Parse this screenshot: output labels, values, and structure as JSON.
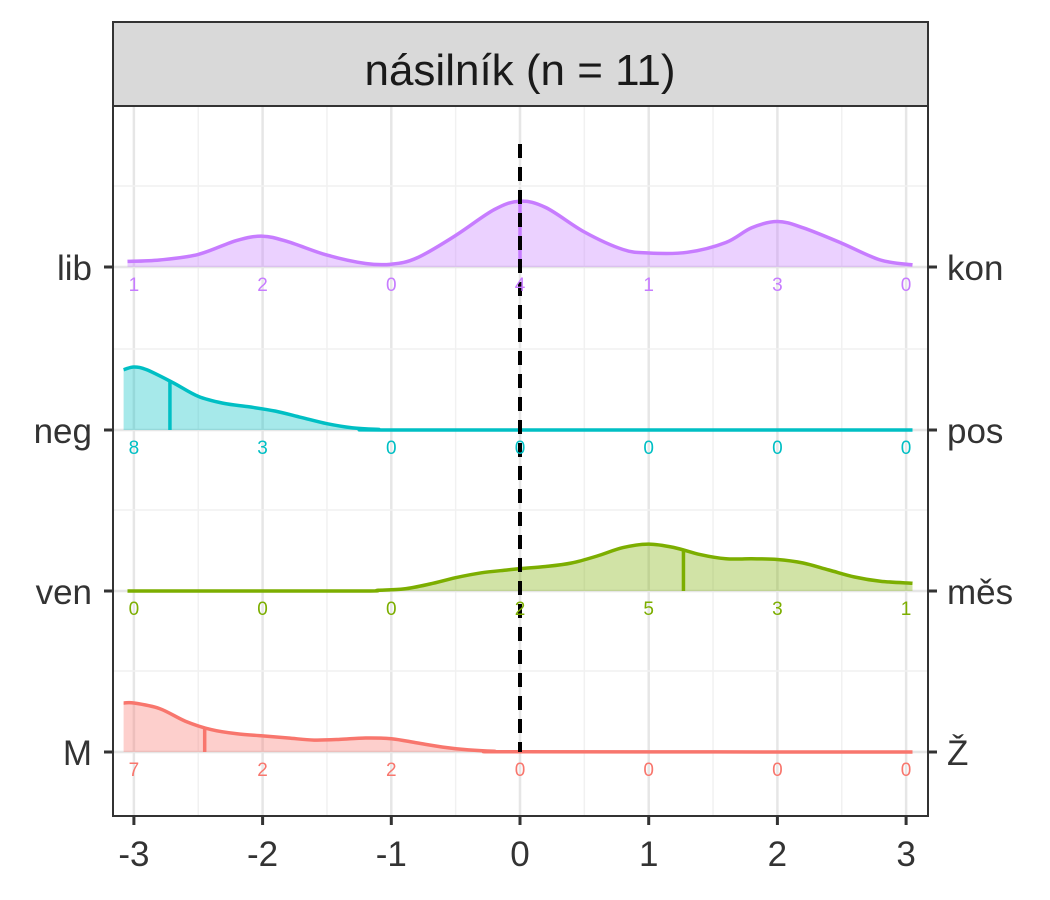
{
  "chart_data": {
    "type": "ridgeline",
    "title": "násilník (n = 11)",
    "x_ticks": [
      "-3",
      "-2",
      "-1",
      "0",
      "1",
      "2",
      "3"
    ],
    "xlim": [
      -3.1,
      3.1
    ],
    "reference_line_x": 0,
    "grid": true,
    "series": [
      {
        "left_label": "lib",
        "right_label": "kon",
        "color": "#C77CFF",
        "counts": [
          1,
          2,
          0,
          4,
          1,
          3,
          0
        ],
        "median": 0.0,
        "curve": [
          [
            -3.05,
            0.08
          ],
          [
            -2.8,
            0.1
          ],
          [
            -2.5,
            0.18
          ],
          [
            -2.2,
            0.38
          ],
          [
            -2.0,
            0.44
          ],
          [
            -1.8,
            0.36
          ],
          [
            -1.5,
            0.17
          ],
          [
            -1.2,
            0.05
          ],
          [
            -1.0,
            0.04
          ],
          [
            -0.8,
            0.13
          ],
          [
            -0.5,
            0.45
          ],
          [
            -0.2,
            0.82
          ],
          [
            0.0,
            0.94
          ],
          [
            0.2,
            0.85
          ],
          [
            0.5,
            0.5
          ],
          [
            0.8,
            0.25
          ],
          [
            1.0,
            0.2
          ],
          [
            1.3,
            0.21
          ],
          [
            1.6,
            0.35
          ],
          [
            1.8,
            0.56
          ],
          [
            2.0,
            0.65
          ],
          [
            2.2,
            0.56
          ],
          [
            2.5,
            0.34
          ],
          [
            2.8,
            0.1
          ],
          [
            3.05,
            0.03
          ]
        ]
      },
      {
        "left_label": "neg",
        "right_label": "pos",
        "color": "#00BFC4",
        "counts": [
          8,
          3,
          0,
          0,
          0,
          0,
          0
        ],
        "median": -2.72,
        "curve": [
          [
            -3.08,
            0.86
          ],
          [
            -3.0,
            0.9
          ],
          [
            -2.9,
            0.86
          ],
          [
            -2.7,
            0.68
          ],
          [
            -2.5,
            0.48
          ],
          [
            -2.3,
            0.38
          ],
          [
            -2.1,
            0.33
          ],
          [
            -1.9,
            0.27
          ],
          [
            -1.7,
            0.18
          ],
          [
            -1.5,
            0.09
          ],
          [
            -1.3,
            0.03
          ],
          [
            -1.1,
            0.008
          ],
          [
            -0.9,
            0.0
          ],
          [
            3.05,
            0.0
          ]
        ]
      },
      {
        "left_label": "ven",
        "right_label": "měs",
        "color": "#7CAE00",
        "counts": [
          0,
          0,
          0,
          2,
          5,
          3,
          1
        ],
        "median": 1.27,
        "curve": [
          [
            -3.05,
            0.0
          ],
          [
            -1.3,
            0.0
          ],
          [
            -1.1,
            0.01
          ],
          [
            -0.9,
            0.03
          ],
          [
            -0.7,
            0.1
          ],
          [
            -0.5,
            0.19
          ],
          [
            -0.3,
            0.26
          ],
          [
            -0.1,
            0.3
          ],
          [
            0.0,
            0.32
          ],
          [
            0.2,
            0.35
          ],
          [
            0.4,
            0.4
          ],
          [
            0.6,
            0.5
          ],
          [
            0.8,
            0.62
          ],
          [
            1.0,
            0.67
          ],
          [
            1.2,
            0.62
          ],
          [
            1.4,
            0.52
          ],
          [
            1.6,
            0.46
          ],
          [
            1.8,
            0.46
          ],
          [
            2.0,
            0.45
          ],
          [
            2.2,
            0.4
          ],
          [
            2.4,
            0.3
          ],
          [
            2.6,
            0.2
          ],
          [
            2.8,
            0.14
          ],
          [
            3.05,
            0.11
          ]
        ]
      },
      {
        "left_label": "M",
        "right_label": "Ž",
        "color": "#F8766D",
        "counts": [
          7,
          2,
          2,
          0,
          0,
          0,
          0
        ],
        "median": -2.45,
        "curve": [
          [
            -3.08,
            0.7
          ],
          [
            -3.0,
            0.7
          ],
          [
            -2.8,
            0.62
          ],
          [
            -2.6,
            0.44
          ],
          [
            -2.4,
            0.32
          ],
          [
            -2.2,
            0.26
          ],
          [
            -2.0,
            0.23
          ],
          [
            -1.8,
            0.2
          ],
          [
            -1.6,
            0.17
          ],
          [
            -1.4,
            0.18
          ],
          [
            -1.2,
            0.2
          ],
          [
            -1.0,
            0.19
          ],
          [
            -0.8,
            0.13
          ],
          [
            -0.6,
            0.07
          ],
          [
            -0.4,
            0.03
          ],
          [
            -0.2,
            0.01
          ],
          [
            0.0,
            0.003
          ],
          [
            3.05,
            0.0
          ]
        ]
      }
    ]
  }
}
